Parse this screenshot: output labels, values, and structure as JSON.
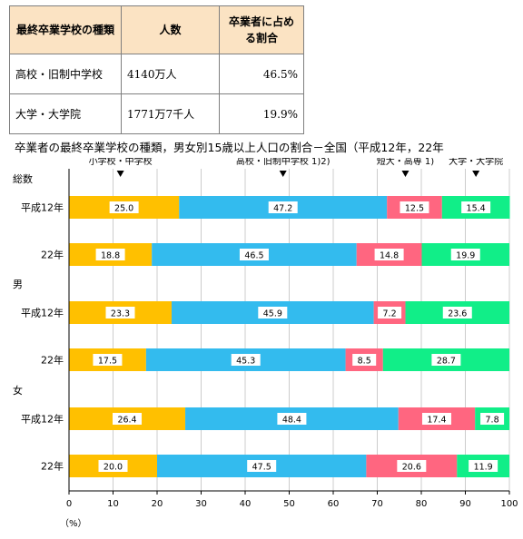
{
  "table": {
    "headers": [
      "最終卒業学校の種類",
      "人数",
      "卒業者に占める割合"
    ],
    "rows": [
      [
        "高校・旧制中学校",
        "4140万人",
        "46.5%"
      ],
      [
        "大学・大学院",
        "1771万7千人",
        "19.9%"
      ]
    ]
  },
  "colors": {
    "series": [
      "#ffc000",
      "#33bbee",
      "#ff6680",
      "#11ee88"
    ],
    "label_bg": "#ffffff",
    "grid": "#cccccc",
    "axis": "#000000"
  },
  "chart_data": {
    "type": "bar",
    "orientation": "horizontal",
    "stacked": true,
    "title": "卒業者の最終卒業学校の種類，男女別15歳以上人口の割合－全国（平成12年，22年",
    "series_names": [
      "小学校・中学校",
      "高校・旧制中学校 1)2)",
      "短大・高専 1)",
      "大学・大学院"
    ],
    "groups": [
      {
        "name": "総数",
        "rows": [
          {
            "label": "平成12年",
            "values": [
              25.0,
              47.2,
              12.5,
              15.4
            ]
          },
          {
            "label": "22年",
            "values": [
              18.8,
              46.5,
              14.8,
              19.9
            ]
          }
        ]
      },
      {
        "name": "男",
        "rows": [
          {
            "label": "平成12年",
            "values": [
              23.3,
              45.9,
              7.2,
              23.6
            ]
          },
          {
            "label": "22年",
            "values": [
              17.5,
              45.3,
              8.5,
              28.7
            ]
          }
        ]
      },
      {
        "name": "女",
        "rows": [
          {
            "label": "平成12年",
            "values": [
              26.4,
              48.4,
              17.4,
              7.8
            ]
          },
          {
            "label": "22年",
            "values": [
              20.0,
              47.5,
              20.6,
              11.9
            ]
          }
        ]
      }
    ],
    "xlim": [
      0,
      100
    ],
    "xticks": [
      0,
      10,
      20,
      30,
      40,
      50,
      60,
      70,
      80,
      90,
      100
    ],
    "xunit": "（%）"
  }
}
